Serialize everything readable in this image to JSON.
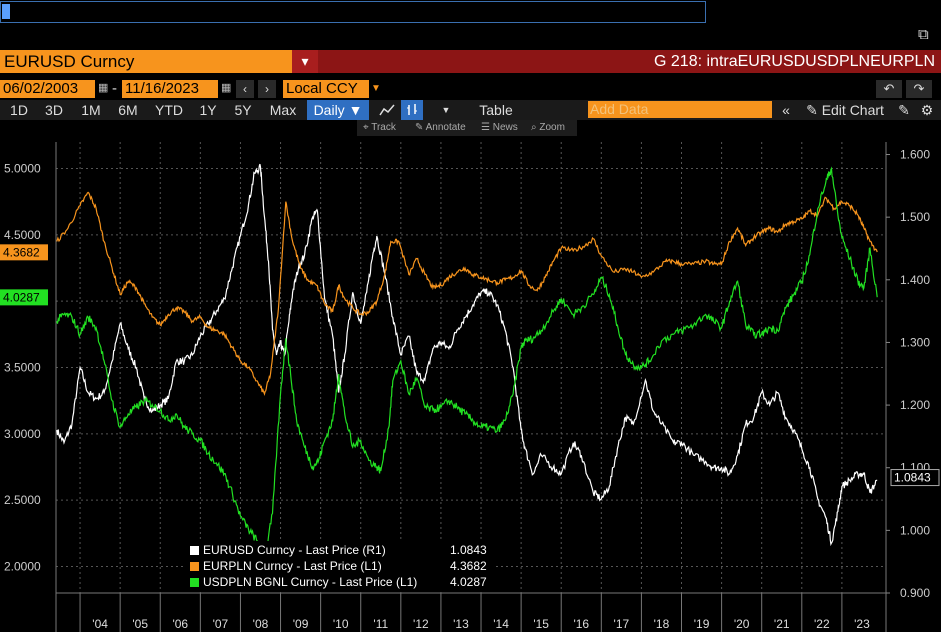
{
  "window": {
    "security": "EURUSD Curncy",
    "graph_title": "G 218: intraEURUSDUSDPLNEURPLN"
  },
  "dates": {
    "start": "06/02/2003",
    "separator": "-",
    "end": "11/16/2023",
    "currency": "Local CCY"
  },
  "toolbar": {
    "ranges": [
      "1D",
      "3D",
      "1M",
      "6M",
      "YTD",
      "1Y",
      "5Y",
      "Max"
    ],
    "frequency": "Daily ▼",
    "table": "Table",
    "add_data_placeholder": "Add Data",
    "edit_chart": "Edit Chart"
  },
  "subtools": {
    "track": "Track",
    "annotate": "Annotate",
    "news": "News",
    "zoom": "Zoom"
  },
  "icons": {
    "popout": "popout-icon",
    "undo": "undo-icon",
    "redo": "redo-icon",
    "line": "line-chart-icon",
    "bar": "bar-chart-icon",
    "settings": "gear-icon"
  },
  "colors": {
    "eurusd": "#ffffff",
    "eurpln": "#f7941d",
    "usdpln": "#22e022",
    "accent": "#f7941d",
    "title_bar": "#8c1515"
  },
  "chart_data": {
    "type": "line",
    "left_axis": {
      "min": 1.8,
      "max": 5.2,
      "ticks": [
        "2.0000",
        "2.5000",
        "3.0000",
        "3.5000",
        "4.0000",
        "4.5000",
        "5.0000"
      ]
    },
    "right_axis": {
      "min": 0.9,
      "max": 1.62,
      "ticks": [
        "0.900",
        "1.000",
        "1.100",
        "1.200",
        "1.300",
        "1.400",
        "1.500",
        "1.600"
      ]
    },
    "x_range": [
      2003.4,
      2024.1
    ],
    "x_ticks": [
      "'04",
      "'05",
      "'06",
      "'07",
      "'08",
      "'09",
      "'10",
      "'11",
      "'12",
      "'13",
      "'14",
      "'15",
      "'16",
      "'17",
      "'18",
      "'19",
      "'20",
      "'21",
      "'22",
      "'23"
    ],
    "grid": true,
    "legend_position": "bottom-left",
    "last_labels": {
      "eurpln": "4.3682",
      "usdpln": "4.0287",
      "eurusd": "1.0843"
    },
    "series": [
      {
        "name": "EURUSD Curncy - Last Price (R1)",
        "last": "1.0843",
        "axis": "right",
        "x": [
          2003.42,
          2003.6,
          2003.8,
          2004.0,
          2004.2,
          2004.4,
          2004.6,
          2004.8,
          2005.0,
          2005.2,
          2005.4,
          2005.6,
          2005.8,
          2006.0,
          2006.2,
          2006.4,
          2006.6,
          2006.8,
          2007.0,
          2007.2,
          2007.4,
          2007.6,
          2007.8,
          2008.0,
          2008.2,
          2008.35,
          2008.5,
          2008.6,
          2008.7,
          2008.8,
          2008.9,
          2009.0,
          2009.1,
          2009.2,
          2009.3,
          2009.45,
          2009.6,
          2009.8,
          2009.92,
          2010.1,
          2010.3,
          2010.45,
          2010.6,
          2010.8,
          2011.0,
          2011.15,
          2011.3,
          2011.4,
          2011.6,
          2011.8,
          2012.0,
          2012.2,
          2012.4,
          2012.6,
          2012.8,
          2013.0,
          2013.2,
          2013.4,
          2013.6,
          2013.8,
          2014.0,
          2014.2,
          2014.4,
          2014.6,
          2014.8,
          2015.0,
          2015.1,
          2015.3,
          2015.5,
          2015.8,
          2016.0,
          2016.3,
          2016.5,
          2016.8,
          2017.0,
          2017.2,
          2017.4,
          2017.6,
          2017.8,
          2018.1,
          2018.3,
          2018.5,
          2018.8,
          2019.0,
          2019.3,
          2019.6,
          2019.8,
          2020.0,
          2020.2,
          2020.4,
          2020.6,
          2020.8,
          2021.0,
          2021.2,
          2021.4,
          2021.6,
          2021.8,
          2022.0,
          2022.2,
          2022.4,
          2022.6,
          2022.74,
          2022.9,
          2023.0,
          2023.2,
          2023.4,
          2023.55,
          2023.7,
          2023.88
        ],
        "y": [
          1.16,
          1.14,
          1.17,
          1.26,
          1.22,
          1.21,
          1.22,
          1.27,
          1.33,
          1.29,
          1.26,
          1.21,
          1.19,
          1.2,
          1.21,
          1.27,
          1.27,
          1.28,
          1.31,
          1.33,
          1.35,
          1.37,
          1.42,
          1.47,
          1.52,
          1.57,
          1.58,
          1.5,
          1.43,
          1.32,
          1.28,
          1.3,
          1.28,
          1.33,
          1.38,
          1.42,
          1.44,
          1.5,
          1.51,
          1.37,
          1.31,
          1.22,
          1.28,
          1.38,
          1.33,
          1.38,
          1.44,
          1.47,
          1.41,
          1.34,
          1.28,
          1.31,
          1.25,
          1.24,
          1.29,
          1.3,
          1.29,
          1.32,
          1.34,
          1.36,
          1.38,
          1.38,
          1.36,
          1.32,
          1.26,
          1.16,
          1.13,
          1.09,
          1.12,
          1.1,
          1.09,
          1.14,
          1.12,
          1.06,
          1.05,
          1.07,
          1.13,
          1.18,
          1.17,
          1.24,
          1.19,
          1.17,
          1.14,
          1.14,
          1.12,
          1.11,
          1.1,
          1.1,
          1.09,
          1.12,
          1.17,
          1.18,
          1.22,
          1.2,
          1.22,
          1.18,
          1.16,
          1.13,
          1.1,
          1.05,
          1.02,
          0.98,
          1.03,
          1.07,
          1.08,
          1.09,
          1.09,
          1.06,
          1.08
        ]
      },
      {
        "name": "EURPLN Curncy - Last Price (L1)",
        "last": "4.3682",
        "axis": "left",
        "x": [
          2003.42,
          2003.7,
          2004.0,
          2004.2,
          2004.4,
          2004.6,
          2004.8,
          2005.0,
          2005.2,
          2005.4,
          2005.6,
          2005.8,
          2006.0,
          2006.2,
          2006.4,
          2006.6,
          2006.8,
          2007.0,
          2007.2,
          2007.4,
          2007.6,
          2007.8,
          2008.0,
          2008.2,
          2008.4,
          2008.6,
          2008.75,
          2008.95,
          2009.13,
          2009.3,
          2009.5,
          2009.7,
          2009.9,
          2010.1,
          2010.3,
          2010.45,
          2010.6,
          2010.8,
          2011.0,
          2011.2,
          2011.4,
          2011.6,
          2011.75,
          2011.95,
          2012.2,
          2012.4,
          2012.6,
          2012.8,
          2013.0,
          2013.2,
          2013.4,
          2013.6,
          2013.8,
          2014.0,
          2014.2,
          2014.4,
          2014.6,
          2014.8,
          2015.0,
          2015.2,
          2015.4,
          2015.6,
          2015.8,
          2016.0,
          2016.3,
          2016.6,
          2016.8,
          2017.0,
          2017.3,
          2017.6,
          2017.8,
          2018.0,
          2018.3,
          2018.6,
          2018.8,
          2019.0,
          2019.3,
          2019.6,
          2019.8,
          2020.0,
          2020.2,
          2020.4,
          2020.6,
          2020.8,
          2021.0,
          2021.2,
          2021.4,
          2021.6,
          2021.8,
          2022.0,
          2022.2,
          2022.4,
          2022.6,
          2022.8,
          2023.0,
          2023.2,
          2023.4,
          2023.55,
          2023.7,
          2023.88
        ],
        "y": [
          4.45,
          4.55,
          4.72,
          4.82,
          4.7,
          4.45,
          4.25,
          4.05,
          4.15,
          4.1,
          3.98,
          3.88,
          3.82,
          3.9,
          3.95,
          3.92,
          3.85,
          3.88,
          3.8,
          3.78,
          3.75,
          3.65,
          3.55,
          3.5,
          3.4,
          3.3,
          3.45,
          3.95,
          4.75,
          4.45,
          4.25,
          4.15,
          4.12,
          3.98,
          3.92,
          4.12,
          4.02,
          3.95,
          3.9,
          3.92,
          4.0,
          4.2,
          4.45,
          4.45,
          4.2,
          4.32,
          4.2,
          4.1,
          4.12,
          4.18,
          4.22,
          4.25,
          4.2,
          4.18,
          4.16,
          4.14,
          4.16,
          4.18,
          4.23,
          4.12,
          4.08,
          4.18,
          4.3,
          4.4,
          4.38,
          4.42,
          4.47,
          4.34,
          4.22,
          4.24,
          4.22,
          4.18,
          4.22,
          4.3,
          4.3,
          4.28,
          4.28,
          4.3,
          4.28,
          4.28,
          4.45,
          4.55,
          4.42,
          4.48,
          4.52,
          4.55,
          4.52,
          4.58,
          4.6,
          4.62,
          4.68,
          4.65,
          4.78,
          4.7,
          4.75,
          4.72,
          4.65,
          4.55,
          4.45,
          4.37
        ]
      },
      {
        "name": "USDPLN BGNL Curncy - Last Price (L1)",
        "last": "4.0287",
        "axis": "left",
        "x": [
          2003.42,
          2003.6,
          2003.8,
          2004.0,
          2004.2,
          2004.4,
          2004.6,
          2004.8,
          2005.0,
          2005.2,
          2005.4,
          2005.6,
          2005.8,
          2006.0,
          2006.2,
          2006.4,
          2006.6,
          2006.8,
          2007.0,
          2007.2,
          2007.4,
          2007.6,
          2007.8,
          2008.0,
          2008.2,
          2008.4,
          2008.5,
          2008.6,
          2008.8,
          2009.0,
          2009.13,
          2009.25,
          2009.4,
          2009.6,
          2009.8,
          2009.95,
          2010.1,
          2010.3,
          2010.45,
          2010.6,
          2010.8,
          2011.0,
          2011.2,
          2011.4,
          2011.5,
          2011.7,
          2011.8,
          2012.0,
          2012.2,
          2012.4,
          2012.6,
          2012.8,
          2013.0,
          2013.2,
          2013.4,
          2013.6,
          2013.8,
          2014.0,
          2014.2,
          2014.4,
          2014.6,
          2014.8,
          2015.0,
          2015.1,
          2015.3,
          2015.5,
          2015.8,
          2016.0,
          2016.3,
          2016.5,
          2016.8,
          2017.0,
          2017.2,
          2017.4,
          2017.6,
          2017.8,
          2018.0,
          2018.2,
          2018.5,
          2018.8,
          2019.0,
          2019.3,
          2019.6,
          2019.8,
          2020.0,
          2020.2,
          2020.4,
          2020.6,
          2020.8,
          2021.0,
          2021.2,
          2021.4,
          2021.6,
          2021.8,
          2022.0,
          2022.2,
          2022.4,
          2022.6,
          2022.74,
          2022.9,
          2023.0,
          2023.2,
          2023.4,
          2023.55,
          2023.7,
          2023.88
        ],
        "y": [
          3.85,
          3.9,
          3.88,
          3.75,
          3.88,
          3.8,
          3.55,
          3.25,
          3.05,
          3.15,
          3.2,
          3.25,
          3.22,
          3.18,
          3.1,
          3.15,
          3.05,
          3.0,
          2.95,
          2.85,
          2.78,
          2.7,
          2.55,
          2.38,
          2.28,
          2.2,
          2.1,
          2.05,
          2.4,
          3.3,
          3.72,
          3.45,
          3.1,
          2.9,
          2.75,
          2.8,
          2.95,
          3.1,
          3.45,
          3.15,
          2.9,
          2.95,
          2.8,
          2.75,
          2.72,
          3.05,
          3.4,
          3.55,
          3.3,
          3.42,
          3.2,
          3.18,
          3.2,
          3.25,
          3.2,
          3.15,
          3.1,
          3.05,
          3.05,
          3.02,
          3.1,
          3.3,
          3.65,
          3.7,
          3.72,
          3.78,
          3.92,
          4.02,
          3.9,
          3.95,
          4.05,
          4.18,
          4.05,
          3.82,
          3.6,
          3.52,
          3.5,
          3.55,
          3.7,
          3.75,
          3.78,
          3.82,
          3.9,
          3.85,
          3.8,
          4.0,
          4.15,
          3.82,
          3.75,
          3.75,
          3.8,
          3.78,
          3.95,
          4.05,
          4.15,
          4.35,
          4.7,
          4.9,
          5.0,
          4.65,
          4.48,
          4.32,
          4.15,
          4.1,
          4.4,
          4.03
        ]
      }
    ]
  }
}
